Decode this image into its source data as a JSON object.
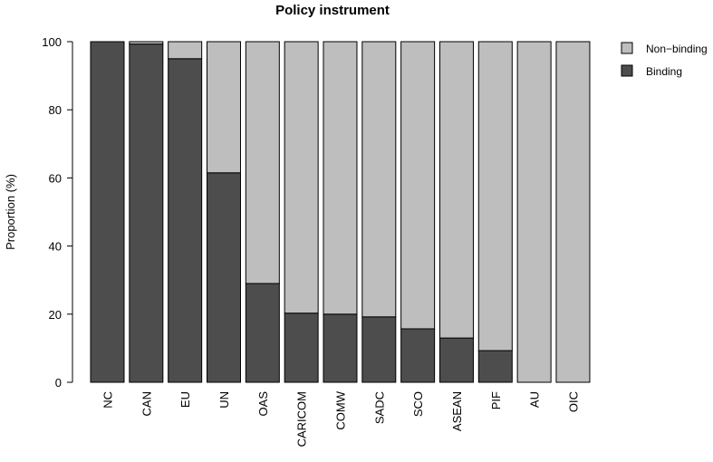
{
  "chart_data": {
    "type": "stacked_bar",
    "title": "Policy instrument",
    "ylabel": "Proportion (%)",
    "categories": [
      "NC",
      "CAN",
      "EU",
      "UN",
      "OAS",
      "CARICOM",
      "COMW",
      "SADC",
      "SCO",
      "ASEAN",
      "PIF",
      "AU",
      "OIC"
    ],
    "series": [
      {
        "name": "Binding",
        "color": "#4d4d4d",
        "values": [
          100,
          99.3,
          95,
          61.5,
          29,
          20.3,
          20,
          19.2,
          15.7,
          13,
          9.3,
          0,
          0
        ]
      },
      {
        "name": "Non−binding",
        "color": "#bebebe",
        "values": [
          0,
          0.7,
          5,
          38.5,
          71,
          79.7,
          80,
          80.8,
          84.3,
          87,
          90.7,
          100,
          100
        ]
      }
    ],
    "ylim": [
      0,
      100
    ],
    "yticks": [
      0,
      20,
      40,
      60,
      80,
      100
    ],
    "legend": "top-right"
  }
}
